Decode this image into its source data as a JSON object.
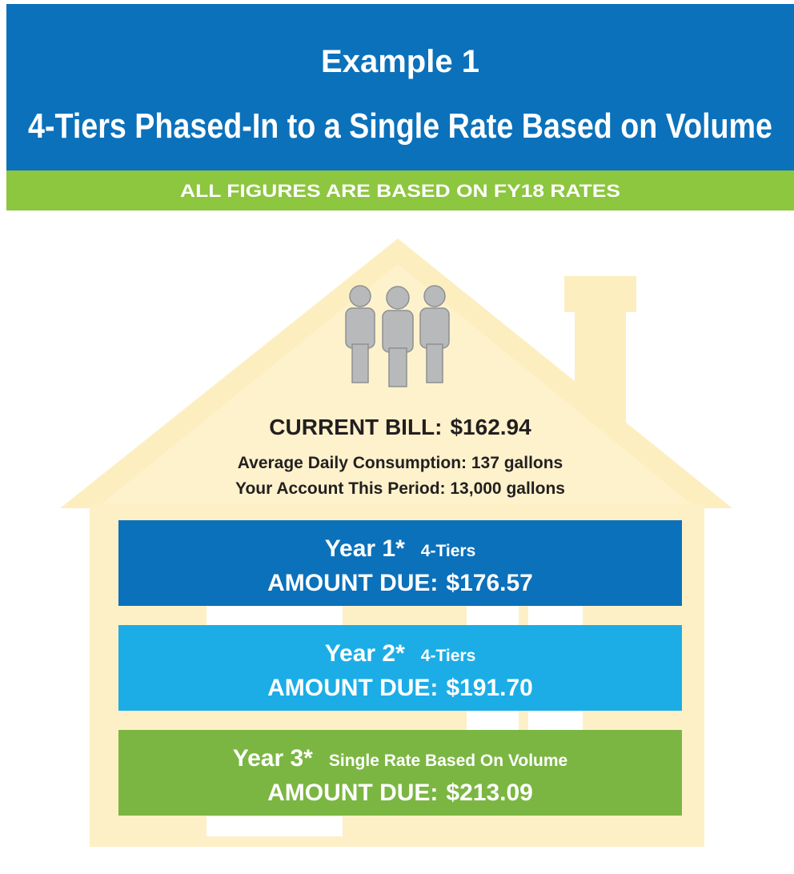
{
  "header": {
    "title": "Example 1",
    "subtitle": "4-Tiers Phased-In to a Single Rate Based on Volume"
  },
  "banner": "ALL FIGURES ARE BASED ON FY18 RATES",
  "current_bill": {
    "label": "CURRENT BILL:",
    "amount": "$162.94"
  },
  "details": [
    "Average Daily Consumption:  137 gallons",
    "Your Account This Period:  13,000 gallons"
  ],
  "years": [
    {
      "label": "Year 1*",
      "plan": "4-Tiers",
      "amount_label": "AMOUNT DUE:",
      "amount": "$176.57"
    },
    {
      "label": "Year 2*",
      "plan": "4-Tiers",
      "amount_label": "AMOUNT DUE:",
      "amount": "$191.70"
    },
    {
      "label": "Year 3*",
      "plan": "Single Rate Based On Volume",
      "amount_label": "AMOUNT DUE:",
      "amount": "$213.09"
    }
  ]
}
